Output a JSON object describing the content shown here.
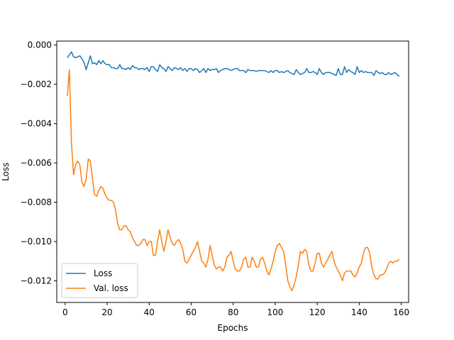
{
  "chart_data": {
    "type": "line",
    "title": "",
    "xlabel": "Epochs",
    "ylabel": "Loss",
    "xlim": [
      -4,
      163.5
    ],
    "ylim": [
      -0.0131,
      0.0002
    ],
    "xticks": [
      0,
      20,
      40,
      60,
      80,
      100,
      120,
      140,
      160
    ],
    "xtick_labels": [
      "0",
      "20",
      "40",
      "60",
      "80",
      "100",
      "120",
      "140",
      "160"
    ],
    "yticks": [
      0,
      -0.002,
      -0.004,
      -0.006,
      -0.008,
      -0.01,
      -0.012
    ],
    "ytick_labels": [
      "0.000",
      "−0.002",
      "−0.004",
      "−0.006",
      "−0.008",
      "−0.010",
      "−0.012"
    ],
    "grid": false,
    "legend_position": "lower-left",
    "series": [
      {
        "name": "Loss",
        "color": "#1f77b4",
        "x": [
          1,
          3,
          4,
          5,
          7,
          8,
          9,
          10,
          11,
          12,
          13,
          14,
          15,
          16,
          17,
          18,
          19,
          20,
          21,
          22,
          23,
          24,
          25,
          26,
          27,
          28,
          29,
          30,
          31,
          32,
          33,
          34,
          35,
          36,
          37,
          38,
          39,
          40,
          41,
          42,
          43,
          44,
          45,
          46,
          47,
          48,
          49,
          50,
          51,
          52,
          53,
          54,
          55,
          56,
          57,
          58,
          59,
          60,
          61,
          62,
          63,
          64,
          65,
          66,
          67,
          68,
          69,
          70,
          71,
          72,
          73,
          74,
          75,
          76,
          77,
          78,
          79,
          80,
          81,
          82,
          83,
          84,
          85,
          86,
          87,
          88,
          89,
          90,
          91,
          92,
          93,
          94,
          95,
          96,
          97,
          98,
          99,
          100,
          101,
          102,
          103,
          104,
          105,
          106,
          107,
          108,
          109,
          110,
          111,
          112,
          113,
          114,
          115,
          116,
          117,
          118,
          119,
          120,
          121,
          122,
          123,
          124,
          125,
          126,
          127,
          128,
          129,
          130,
          131,
          132,
          133,
          134,
          135,
          136,
          137,
          138,
          139,
          140,
          141,
          142,
          143,
          144,
          145,
          146,
          147,
          148,
          149,
          150,
          151,
          152,
          153,
          154,
          155,
          156,
          157,
          158,
          159
        ],
        "y": [
          -0.00065,
          -0.00035,
          -0.0006,
          -0.00065,
          -0.00055,
          -0.0007,
          -0.0009,
          -0.00125,
          -0.0009,
          -0.00055,
          -0.00095,
          -0.0009,
          -0.001,
          -0.0008,
          -0.00095,
          -0.0008,
          -0.00095,
          -0.001,
          -0.001,
          -0.00115,
          -0.00115,
          -0.0012,
          -0.0012,
          -0.001,
          -0.0012,
          -0.0012,
          -0.00125,
          -0.00115,
          -0.00125,
          -0.00105,
          -0.00115,
          -0.00115,
          -0.00125,
          -0.0012,
          -0.0012,
          -0.00125,
          -0.00115,
          -0.00135,
          -0.0011,
          -0.0011,
          -0.00125,
          -0.00135,
          -0.001,
          -0.00115,
          -0.0012,
          -0.00135,
          -0.0011,
          -0.0012,
          -0.0013,
          -0.00115,
          -0.0012,
          -0.00125,
          -0.00115,
          -0.0013,
          -0.0012,
          -0.00135,
          -0.0012,
          -0.0012,
          -0.0013,
          -0.0012,
          -0.00125,
          -0.0014,
          -0.0013,
          -0.0012,
          -0.0014,
          -0.0012,
          -0.0013,
          -0.00125,
          -0.00125,
          -0.0012,
          -0.0014,
          -0.0013,
          -0.00125,
          -0.0012,
          -0.0012,
          -0.00125,
          -0.0013,
          -0.00125,
          -0.0012,
          -0.0012,
          -0.0013,
          -0.0013,
          -0.0013,
          -0.0014,
          -0.00125,
          -0.0013,
          -0.0013,
          -0.0013,
          -0.00135,
          -0.0013,
          -0.0013,
          -0.0013,
          -0.0013,
          -0.00135,
          -0.0014,
          -0.0013,
          -0.0014,
          -0.0013,
          -0.0013,
          -0.0014,
          -0.00135,
          -0.0014,
          -0.00135,
          -0.0013,
          -0.0014,
          -0.00145,
          -0.0015,
          -0.00125,
          -0.0014,
          -0.0015,
          -0.00145,
          -0.0014,
          -0.0012,
          -0.0014,
          -0.0014,
          -0.00135,
          -0.0014,
          -0.0015,
          -0.0012,
          -0.0014,
          -0.0015,
          -0.0014,
          -0.0014,
          -0.0014,
          -0.00145,
          -0.0015,
          -0.00155,
          -0.0012,
          -0.0015,
          -0.0015,
          -0.0011,
          -0.0014,
          -0.00125,
          -0.00135,
          -0.0014,
          -0.0015,
          -0.0011,
          -0.0014,
          -0.0013,
          -0.0014,
          -0.00135,
          -0.0014,
          -0.0014,
          -0.0014,
          -0.00155,
          -0.0013,
          -0.0014,
          -0.00145,
          -0.0014,
          -0.0015,
          -0.0015,
          -0.0014,
          -0.0015,
          -0.00145,
          -0.0014,
          -0.0015,
          -0.0016
        ]
      },
      {
        "name": "Val. loss",
        "color": "#ff7f0e",
        "x": [
          1,
          2,
          3,
          4,
          5,
          6,
          7,
          8,
          9,
          10,
          11,
          12,
          13,
          14,
          15,
          16,
          17,
          18,
          19,
          20,
          21,
          22,
          23,
          24,
          25,
          26,
          27,
          28,
          29,
          30,
          31,
          32,
          33,
          34,
          35,
          36,
          37,
          38,
          39,
          40,
          41,
          42,
          43,
          44,
          45,
          46,
          47,
          48,
          49,
          50,
          51,
          52,
          53,
          54,
          55,
          56,
          57,
          58,
          59,
          60,
          61,
          62,
          63,
          64,
          65,
          66,
          67,
          68,
          69,
          70,
          71,
          72,
          73,
          74,
          75,
          76,
          77,
          78,
          79,
          80,
          81,
          82,
          83,
          84,
          85,
          86,
          87,
          88,
          89,
          90,
          91,
          92,
          93,
          94,
          95,
          96,
          97,
          98,
          99,
          100,
          101,
          102,
          103,
          104,
          105,
          106,
          107,
          108,
          109,
          110,
          111,
          112,
          113,
          114,
          115,
          116,
          117,
          118,
          119,
          120,
          121,
          122,
          123,
          124,
          125,
          126,
          127,
          128,
          129,
          130,
          131,
          132,
          133,
          134,
          135,
          136,
          137,
          138,
          139,
          140,
          141,
          142,
          143,
          144,
          145,
          146,
          147,
          148,
          149,
          150,
          151,
          152,
          153,
          154,
          155,
          156,
          157,
          158,
          159
        ],
        "y": [
          -0.0026,
          -0.00125,
          -0.005,
          -0.0066,
          -0.0061,
          -0.0059,
          -0.0061,
          -0.007,
          -0.0072,
          -0.0068,
          -0.0058,
          -0.0059,
          -0.0068,
          -0.0076,
          -0.0077,
          -0.0074,
          -0.0072,
          -0.0073,
          -0.0076,
          -0.0078,
          -0.0079,
          -0.0079,
          -0.008,
          -0.0084,
          -0.0091,
          -0.0094,
          -0.0094,
          -0.0092,
          -0.0092,
          -0.0094,
          -0.0095,
          -0.0098,
          -0.01,
          -0.0102,
          -0.0102,
          -0.0101,
          -0.0099,
          -0.0099,
          -0.0102,
          -0.01,
          -0.01,
          -0.0107,
          -0.0107,
          -0.01,
          -0.0094,
          -0.01,
          -0.0105,
          -0.01,
          -0.0094,
          -0.0098,
          -0.0101,
          -0.0102,
          -0.01,
          -0.0099,
          -0.0101,
          -0.0104,
          -0.011,
          -0.0111,
          -0.0109,
          -0.0107,
          -0.0105,
          -0.0103,
          -0.01,
          -0.0105,
          -0.011,
          -0.0111,
          -0.0113,
          -0.0109,
          -0.0102,
          -0.0107,
          -0.0112,
          -0.0114,
          -0.0113,
          -0.0113,
          -0.0115,
          -0.0113,
          -0.0108,
          -0.0107,
          -0.0105,
          -0.011,
          -0.0114,
          -0.0115,
          -0.0115,
          -0.0113,
          -0.0109,
          -0.0108,
          -0.0113,
          -0.0113,
          -0.0108,
          -0.011,
          -0.0113,
          -0.0113,
          -0.0109,
          -0.0108,
          -0.0111,
          -0.0115,
          -0.0117,
          -0.0114,
          -0.011,
          -0.0105,
          -0.0102,
          -0.0101,
          -0.0103,
          -0.0105,
          -0.0112,
          -0.012,
          -0.0123,
          -0.0125,
          -0.0122,
          -0.0118,
          -0.0112,
          -0.0105,
          -0.0106,
          -0.0104,
          -0.0105,
          -0.0112,
          -0.0115,
          -0.0115,
          -0.0111,
          -0.0106,
          -0.0106,
          -0.0111,
          -0.0113,
          -0.0111,
          -0.0109,
          -0.0107,
          -0.0105,
          -0.011,
          -0.0113,
          -0.0115,
          -0.0117,
          -0.012,
          -0.0116,
          -0.0115,
          -0.0115,
          -0.0115,
          -0.0117,
          -0.0118,
          -0.0116,
          -0.0113,
          -0.0111,
          -0.0106,
          -0.0103,
          -0.0103,
          -0.0106,
          -0.0113,
          -0.0117,
          -0.0119,
          -0.0119,
          -0.0117,
          -0.0117,
          -0.0116,
          -0.0114,
          -0.0111,
          -0.011,
          -0.0111,
          -0.011,
          -0.011,
          -0.0109
        ]
      }
    ]
  }
}
